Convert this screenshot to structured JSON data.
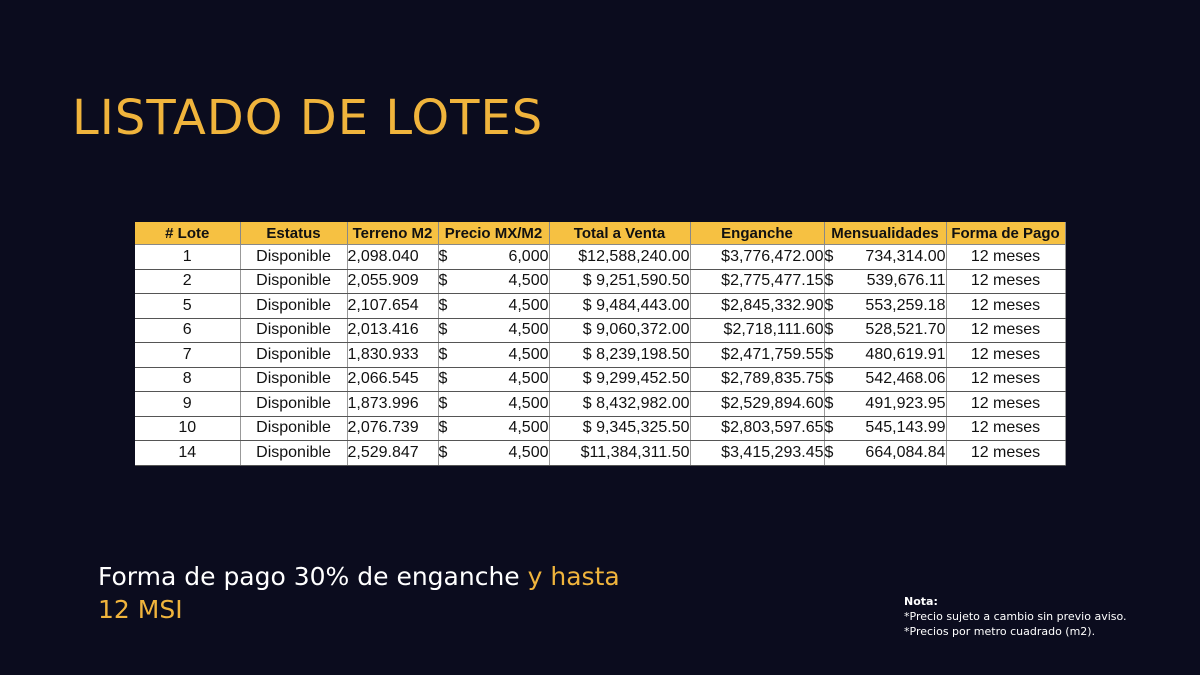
{
  "title": "LISTADO DE LOTES",
  "table": {
    "headers": [
      "# Lote",
      "Estatus",
      "Terreno M2",
      "Precio MX/M2",
      "Total a Venta",
      "Enganche",
      "Mensualidades",
      "Forma de Pago"
    ],
    "rows": [
      {
        "lote": "1",
        "estatus": "Disponible",
        "terreno": "2,098.040",
        "precio_sym": "$",
        "precio": "6,000",
        "total": "$12,588,240.00",
        "enganche": "$3,776,472.00",
        "mens_sym": "$",
        "mens": "734,314.00",
        "forma": "12 meses"
      },
      {
        "lote": "2",
        "estatus": "Disponible",
        "terreno": "2,055.909",
        "precio_sym": "$",
        "precio": "4,500",
        "total": "$ 9,251,590.50",
        "enganche": "$2,775,477.15",
        "mens_sym": "$",
        "mens": "539,676.11",
        "forma": "12 meses"
      },
      {
        "lote": "5",
        "estatus": "Disponible",
        "terreno": "2,107.654",
        "precio_sym": "$",
        "precio": "4,500",
        "total": "$ 9,484,443.00",
        "enganche": "$2,845,332.90",
        "mens_sym": "$",
        "mens": "553,259.18",
        "forma": "12 meses"
      },
      {
        "lote": "6",
        "estatus": "Disponible",
        "terreno": "2,013.416",
        "precio_sym": "$",
        "precio": "4,500",
        "total": "$ 9,060,372.00",
        "enganche": "$2,718,111.60",
        "mens_sym": "$",
        "mens": "528,521.70",
        "forma": "12 meses"
      },
      {
        "lote": "7",
        "estatus": "Disponible",
        "terreno": "1,830.933",
        "precio_sym": "$",
        "precio": "4,500",
        "total": "$ 8,239,198.50",
        "enganche": "$2,471,759.55",
        "mens_sym": "$",
        "mens": "480,619.91",
        "forma": "12 meses"
      },
      {
        "lote": "8",
        "estatus": "Disponible",
        "terreno": "2,066.545",
        "precio_sym": "$",
        "precio": "4,500",
        "total": "$ 9,299,452.50",
        "enganche": "$2,789,835.75",
        "mens_sym": "$",
        "mens": "542,468.06",
        "forma": "12 meses"
      },
      {
        "lote": "9",
        "estatus": "Disponible",
        "terreno": "1,873.996",
        "precio_sym": "$",
        "precio": "4,500",
        "total": "$ 8,432,982.00",
        "enganche": "$2,529,894.60",
        "mens_sym": "$",
        "mens": "491,923.95",
        "forma": "12 meses"
      },
      {
        "lote": "10",
        "estatus": "Disponible",
        "terreno": "2,076.739",
        "precio_sym": "$",
        "precio": "4,500",
        "total": "$ 9,345,325.50",
        "enganche": "$2,803,597.65",
        "mens_sym": "$",
        "mens": "545,143.99",
        "forma": "12 meses"
      },
      {
        "lote": "14",
        "estatus": "Disponible",
        "terreno": "2,529.847",
        "precio_sym": "$",
        "precio": "4,500",
        "total": "$11,384,311.50",
        "enganche": "$3,415,293.45",
        "mens_sym": "$",
        "mens": "664,084.84",
        "forma": "12 meses"
      }
    ]
  },
  "subtitle": {
    "part1": "Forma de pago 30% de enganche ",
    "part2": "y hasta 12 MSI"
  },
  "nota": {
    "title": "Nota:",
    "line1": "*Precio sujeto a cambio sin previo aviso.",
    "line2": "*Precios por metro cuadrado (m2)."
  },
  "colors": {
    "background": "#0b0c1e",
    "accent": "#f0b43c",
    "header_fill": "#f6c142"
  }
}
